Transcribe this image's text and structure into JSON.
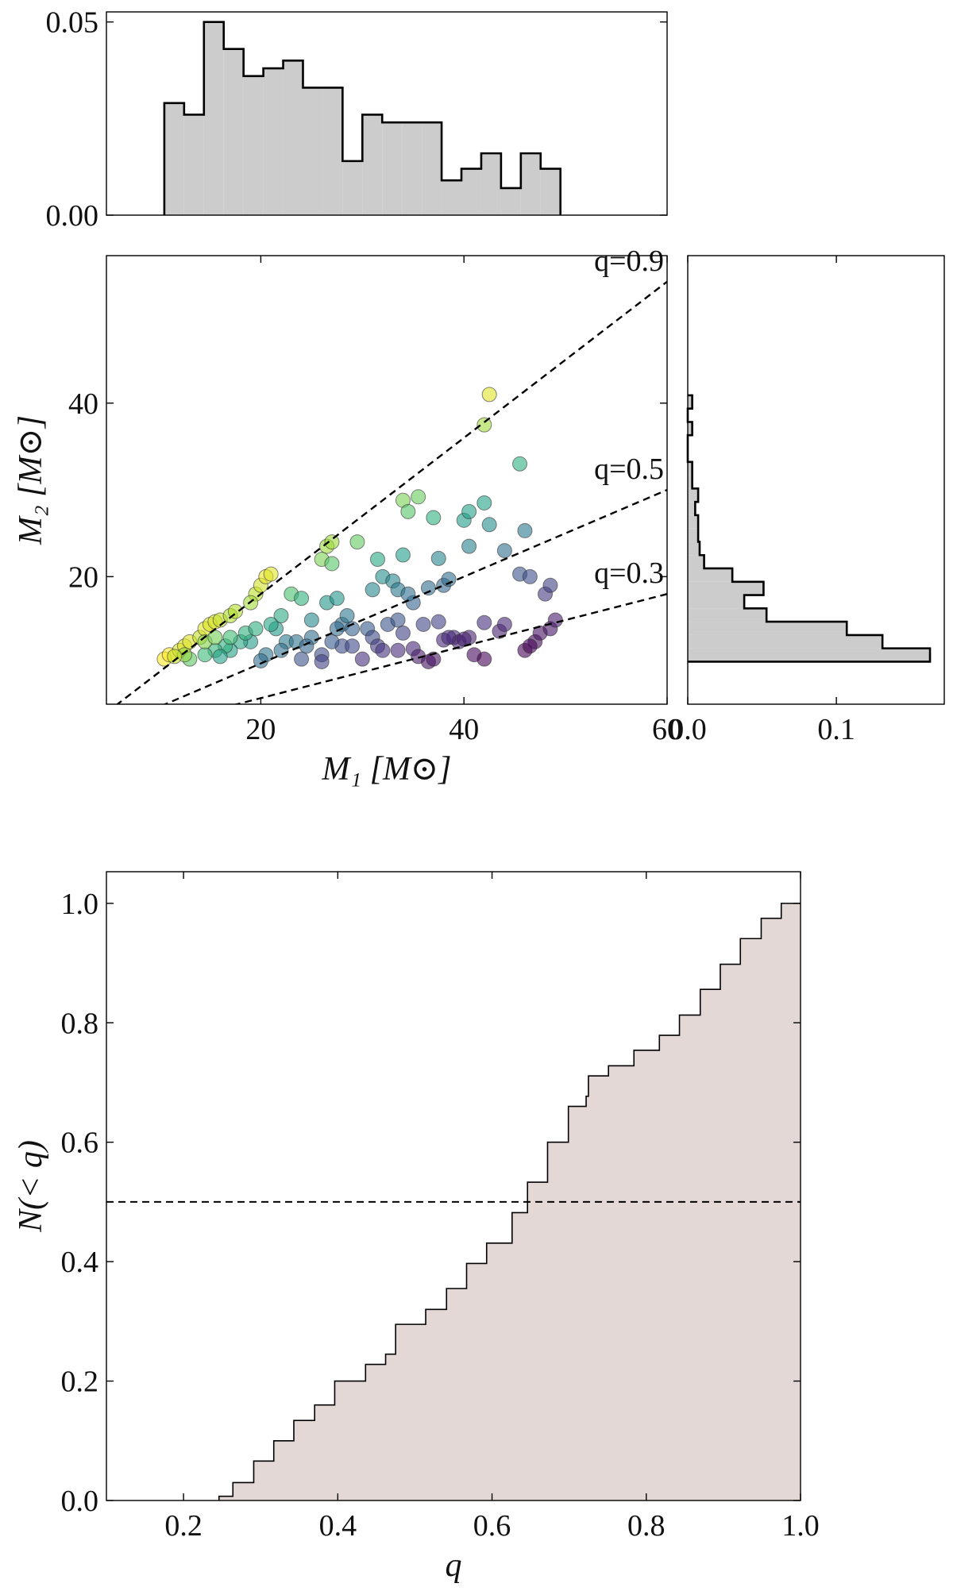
{
  "chart_data": [
    {
      "type": "histogram",
      "orientation": "vertical",
      "color": "#cccccc",
      "bins": [
        10.5,
        12.45,
        14.4,
        16.35,
        18.3,
        20.25,
        22.2,
        24.15,
        26.1,
        28.05,
        30,
        31.95,
        33.9,
        35.85,
        37.8,
        39.75,
        41.7,
        43.65,
        45.6,
        47.55,
        49.5
      ],
      "values": [
        0.029,
        0.026,
        0.05,
        0.043,
        0.036,
        0.038,
        0.04,
        0.033,
        0.033,
        0.014,
        0.026,
        0.024,
        0.024,
        0.024,
        0.009,
        0.012,
        0.016,
        0.007,
        0.016,
        0.012
      ],
      "xlim": [
        4.8,
        60
      ],
      "ylim": [
        0,
        0.0526
      ],
      "yticks": [
        {
          "value": 0,
          "label": "0.00"
        },
        {
          "value": 0.05,
          "label": "0.05"
        }
      ]
    },
    {
      "type": "scatter",
      "colormap": "viridis",
      "xlabel": "M₁ [M⊙]",
      "ylabel": "M₂ [M⊙]",
      "x": [
        10.5,
        11,
        12,
        12.5,
        13,
        14,
        14.5,
        15,
        15.5,
        16,
        17,
        17.5,
        19.5,
        20,
        20.5,
        21,
        19,
        42.5,
        42,
        26.5,
        27,
        29.5,
        26,
        27,
        31.5,
        34,
        35.5,
        34.5,
        37,
        40,
        40.5,
        42,
        42.5,
        45.5,
        46,
        44,
        40.5,
        37.5,
        34,
        31,
        32,
        33,
        33.5,
        35,
        36.5,
        38,
        38.5,
        45.5,
        46.5,
        48,
        48.5,
        23,
        24,
        22,
        21.5,
        25,
        26.5,
        27.5,
        28,
        28.5,
        29,
        30.5,
        31,
        32.5,
        34,
        33.5,
        28,
        27,
        26,
        24,
        25,
        22.5,
        20.5,
        20,
        19,
        18,
        17,
        16.5,
        15.5,
        14.5,
        13,
        12.5,
        11.5,
        16,
        18.5,
        19.5,
        17,
        14.5,
        15.5,
        21,
        23.5,
        22,
        26,
        29,
        30,
        31.5,
        32,
        33.5,
        35,
        35.5,
        36.5,
        37,
        38,
        39,
        39.5,
        40.5,
        42,
        43.5,
        44,
        47,
        47.5,
        48.5,
        49,
        41,
        42,
        46,
        46.5,
        38.5,
        40,
        27.5,
        24.5,
        34.5,
        36,
        37.5
      ],
      "values": [
        10.5,
        11,
        11.5,
        12,
        12.5,
        13,
        14,
        14.5,
        14.8,
        15,
        15.5,
        16,
        18,
        19,
        20,
        20.3,
        17,
        41,
        37.5,
        23.5,
        24,
        24,
        22,
        21.5,
        22,
        28.8,
        29.2,
        27.5,
        26.8,
        26.5,
        27.5,
        28.5,
        26,
        33,
        25.3,
        23,
        23.5,
        22.1,
        22.5,
        18.5,
        20,
        19.5,
        18.5,
        17,
        18.7,
        19,
        19.7,
        20.3,
        20,
        18,
        19,
        18,
        17.5,
        15.5,
        14,
        15,
        17,
        17.5,
        14.5,
        15.5,
        14,
        14,
        13,
        14.5,
        13.5,
        15,
        12,
        12.5,
        11,
        10.5,
        13,
        12.5,
        11,
        10.3,
        12.5,
        12.5,
        11.5,
        12,
        11.5,
        11,
        10.5,
        11,
        10.8,
        10.8,
        13.5,
        14,
        13,
        12.5,
        13,
        14.5,
        12.5,
        11.5,
        10.2,
        12,
        10.5,
        12,
        11.5,
        11.5,
        11.7,
        10.8,
        10.2,
        10.5,
        12.7,
        13,
        12.5,
        13,
        14.7,
        13.7,
        14.5,
        12.5,
        13.5,
        14,
        15,
        11,
        10.5,
        11.5,
        12,
        13,
        12.8,
        14,
        12,
        18,
        14.5,
        14.8
      ],
      "lines": [
        {
          "q": 0.9,
          "label": "q=0.9"
        },
        {
          "q": 0.5,
          "label": "q=0.5"
        },
        {
          "q": 0.3,
          "label": "q=0.3"
        }
      ],
      "xlim": [
        4.8,
        60
      ],
      "ylim": [
        5.3,
        57
      ],
      "xticks": [
        20,
        40,
        60
      ],
      "yticks": [
        20,
        40
      ]
    },
    {
      "type": "histogram",
      "orientation": "horizontal",
      "color": "#cccccc",
      "bins": [
        10.2,
        11.74,
        13.27,
        14.81,
        16.34,
        17.88,
        19.41,
        20.95,
        22.48,
        24.02,
        25.55,
        27.09,
        28.62,
        30.16,
        31.69,
        33.23,
        34.76,
        36.3,
        37.83,
        39.37,
        40.9
      ],
      "values": [
        0.163,
        0.131,
        0.107,
        0.053,
        0.038,
        0.051,
        0.03,
        0.011,
        0.008,
        0.007,
        0.007,
        0.005,
        0.007,
        0.003,
        0.003,
        0,
        0,
        0.003,
        0,
        0.003
      ],
      "ylim": [
        5.3,
        57
      ],
      "xlim": [
        0,
        0.1726
      ],
      "xticks": [
        {
          "value": 0,
          "label": "0.0"
        },
        0.1
      ]
    },
    {
      "type": "step",
      "color": "#e3d8d5",
      "xlabel": "q",
      "ylabel": "N(< q)",
      "hline": 0.5,
      "x": [
        0.246,
        0.264,
        0.291,
        0.317,
        0.343,
        0.37,
        0.396,
        0.436,
        0.462,
        0.475,
        0.514,
        0.541,
        0.567,
        0.593,
        0.626,
        0.646,
        0.672,
        0.699,
        0.722,
        0.725,
        0.751,
        0.784,
        0.817,
        0.843,
        0.87,
        0.896,
        0.922,
        0.949,
        0.975,
        1.0
      ],
      "values": [
        0.007,
        0.03,
        0.066,
        0.1,
        0.134,
        0.16,
        0.2,
        0.228,
        0.245,
        0.295,
        0.32,
        0.355,
        0.397,
        0.431,
        0.482,
        0.533,
        0.6,
        0.66,
        0.677,
        0.711,
        0.728,
        0.754,
        0.779,
        0.813,
        0.856,
        0.898,
        0.941,
        0.975,
        1.0,
        1.0
      ],
      "xlim": [
        0.1,
        1.0
      ],
      "ylim": [
        0,
        1.053
      ],
      "xticks": [
        0.2,
        0.4,
        0.6,
        0.8,
        {
          "value": 1,
          "label": "1.0"
        }
      ],
      "yticks": [
        {
          "value": 0,
          "label": "0.0"
        },
        0.2,
        0.4,
        0.6,
        0.8,
        {
          "value": 1,
          "label": "1.0"
        }
      ]
    }
  ]
}
